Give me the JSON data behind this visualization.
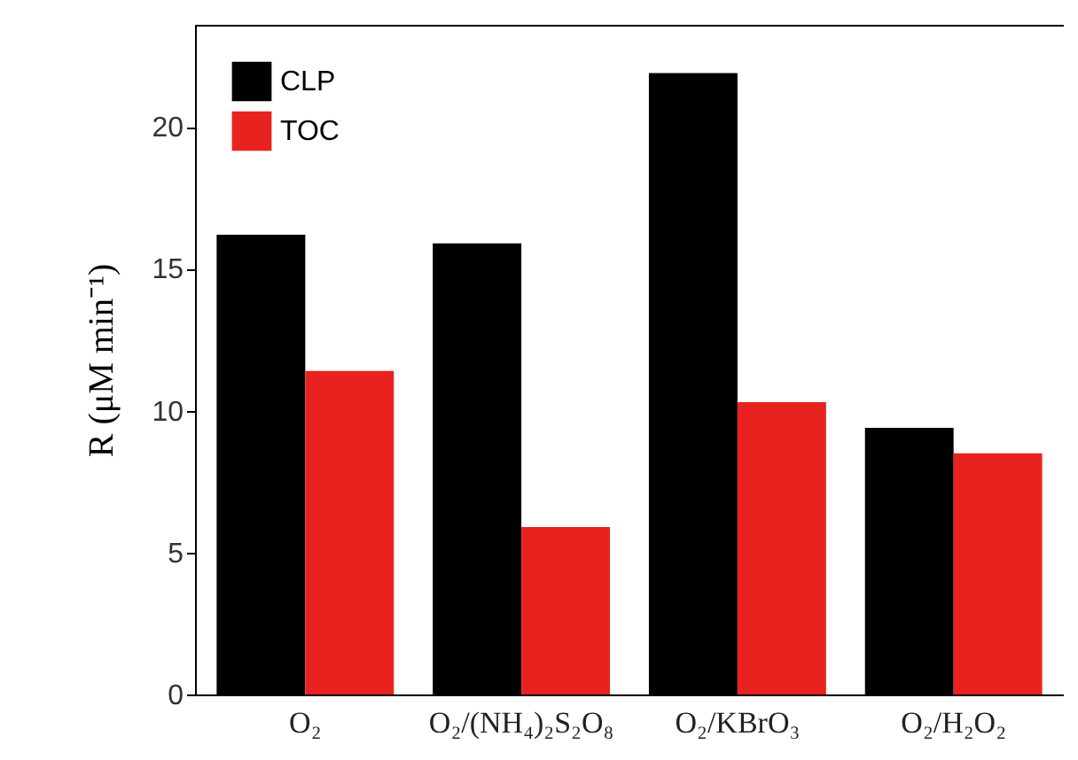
{
  "chart_data": {
    "type": "bar",
    "ylabel": "R (μM min⁻¹)",
    "categories": [
      "O₂",
      "O₂/(NH₄)₂S₂O₈",
      "O₂/KBrO₃",
      "O₂/H₂O₂"
    ],
    "series": [
      {
        "name": "CLP",
        "color": "#000000",
        "values": [
          16.2,
          15.9,
          21.9,
          9.4
        ]
      },
      {
        "name": "TOC",
        "color": "#e8231f",
        "values": [
          11.4,
          5.9,
          10.3,
          8.5
        ]
      }
    ],
    "ylim": [
      0,
      23.6
    ],
    "yticks": [
      0,
      5,
      10,
      15,
      20
    ],
    "grid": false,
    "legend": "top left"
  }
}
